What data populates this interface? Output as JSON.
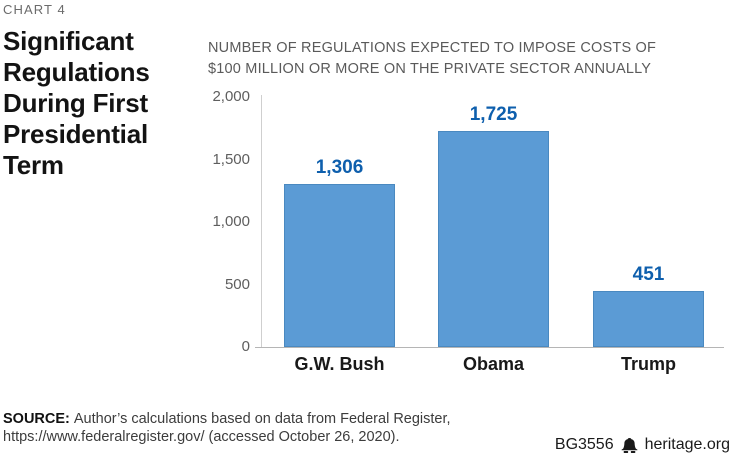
{
  "page": {
    "kicker": "CHART 4",
    "title": "Significant Regulations During First Presidential Term"
  },
  "subtitle": {
    "lines": [
      "NUMBER OF REGULATIONS EXPECTED TO IMPOSE COSTS OF",
      "$100 MILLION OR MORE ON THE PRIVATE SECTOR ANNUALLY"
    ]
  },
  "chart_data": {
    "type": "bar",
    "title": "Number of regulations expected to impose costs of $100 million or more on the private sector annually",
    "categories": [
      "G.W. Bush",
      "Obama",
      "Trump"
    ],
    "values": [
      1306,
      1725,
      451
    ],
    "value_labels": [
      "1,306",
      "1,725",
      "451"
    ],
    "xlabel": "",
    "ylabel": "",
    "ylim": [
      0,
      2000
    ],
    "yticks": [
      {
        "v": 2000,
        "label": "2,000"
      },
      {
        "v": 1500,
        "label": "1,500"
      },
      {
        "v": 1000,
        "label": "1,000"
      },
      {
        "v": 500,
        "label": "500"
      },
      {
        "v": 0,
        "label": "0"
      }
    ],
    "grid": false,
    "legend": "none"
  },
  "colors": {
    "bar": "#5b9bd5",
    "bar_border": "#4a89c0",
    "value_label": "#0e5fad",
    "axis": "#cfcfcf",
    "baseline": "#b5b5b5"
  },
  "source": {
    "label": "SOURCE:",
    "lines": [
      "Author’s calculations based on data from Federal Register,",
      "https://www.federalregister.gov/ (accessed October 26, 2020)."
    ]
  },
  "footer": {
    "doc_id": "BG3556",
    "site": "heritage.org",
    "icon": "liberty-bell-icon"
  }
}
